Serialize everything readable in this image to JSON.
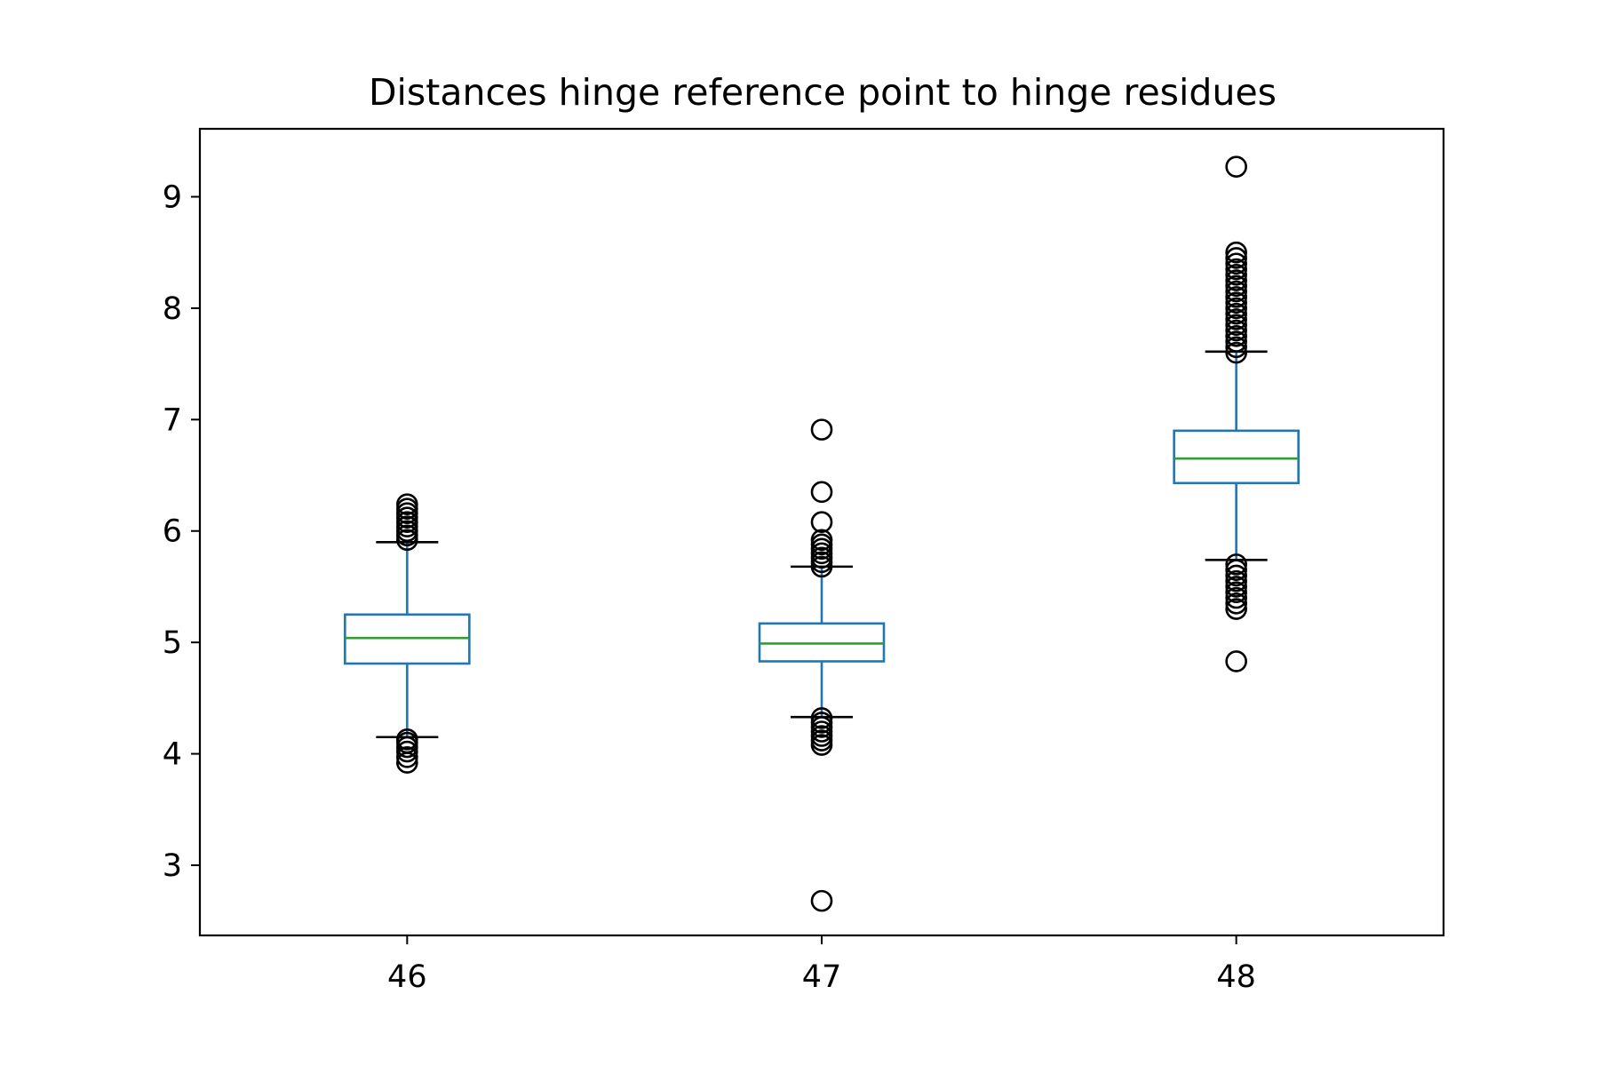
{
  "chart_data": {
    "type": "box",
    "title": "Distances hinge reference point to hinge residues",
    "xlabel": "",
    "ylabel": "",
    "categories": [
      "46",
      "47",
      "48"
    ],
    "ylim": [
      2.37,
      9.61
    ],
    "yticks": [
      3,
      4,
      5,
      6,
      7,
      8,
      9
    ],
    "grid": false,
    "colors": {
      "box": "#1f77b4",
      "median": "#2ca02c",
      "caps": "#000000",
      "fliers": "#000000",
      "axes": "#000000"
    },
    "boxes": [
      {
        "category": "46",
        "whisker_low": 4.15,
        "q1": 4.81,
        "median": 5.04,
        "q3": 5.25,
        "whisker_high": 5.9,
        "fliers": [
          3.92,
          3.97,
          4.02,
          4.06,
          4.1,
          4.13,
          5.92,
          5.96,
          6.0,
          6.04,
          6.08,
          6.12,
          6.16,
          6.2,
          6.24
        ]
      },
      {
        "category": "47",
        "whisker_low": 4.33,
        "q1": 4.83,
        "median": 4.99,
        "q3": 5.17,
        "whisker_high": 5.68,
        "fliers": [
          2.68,
          4.08,
          4.12,
          4.16,
          4.2,
          4.24,
          4.28,
          4.32,
          5.68,
          5.72,
          5.76,
          5.8,
          5.84,
          5.88,
          5.92,
          6.08,
          6.35,
          6.91
        ]
      },
      {
        "category": "48",
        "whisker_low": 5.74,
        "q1": 6.43,
        "median": 6.65,
        "q3": 6.9,
        "whisker_high": 7.61,
        "fliers": [
          4.83,
          5.3,
          5.35,
          5.4,
          5.45,
          5.5,
          5.55,
          5.6,
          5.65,
          5.7,
          7.6,
          7.65,
          7.7,
          7.75,
          7.8,
          7.85,
          7.9,
          7.95,
          8.0,
          8.05,
          8.1,
          8.15,
          8.2,
          8.25,
          8.3,
          8.35,
          8.4,
          8.45,
          8.5,
          9.27
        ]
      }
    ]
  }
}
